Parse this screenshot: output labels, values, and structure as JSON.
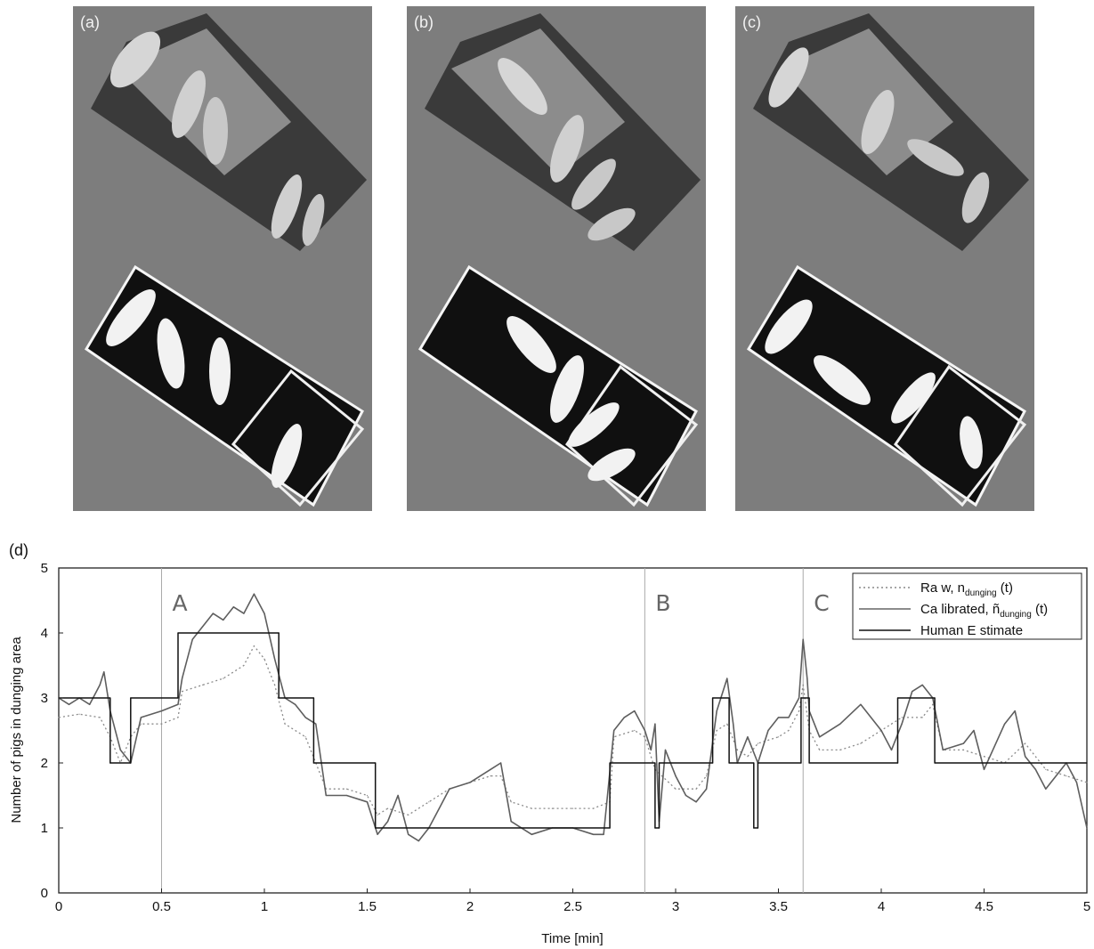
{
  "panels": [
    {
      "id": "a",
      "label": "(a)"
    },
    {
      "id": "b",
      "label": "(b)"
    },
    {
      "id": "c",
      "label": "(c)"
    }
  ],
  "chart_data": {
    "type": "line",
    "panel_label": "(d)",
    "xlabel": "Time [min]",
    "ylabel": "Number of pigs in dunging area",
    "xlim": [
      0,
      5
    ],
    "ylim": [
      0,
      5
    ],
    "xticks": [
      "0",
      "0.5",
      "1",
      "1.5",
      "2",
      "2.5",
      "3",
      "3.5",
      "4",
      "4.5",
      "5"
    ],
    "yticks": [
      "0",
      "1",
      "2",
      "3",
      "4",
      "5"
    ],
    "legend_position": "top-right",
    "markers": [
      {
        "label": "A",
        "x": 0.5
      },
      {
        "label": "B",
        "x": 2.85
      },
      {
        "label": "C",
        "x": 3.62
      }
    ],
    "series": [
      {
        "name": "Raw, n_dunging(t)",
        "legend_text": "Ra w, n",
        "legend_sub": "dunging",
        "legend_suffix": " (t)",
        "style": "dotted",
        "x": [
          0,
          0.1,
          0.2,
          0.25,
          0.3,
          0.35,
          0.4,
          0.5,
          0.58,
          0.6,
          0.7,
          0.8,
          0.9,
          0.95,
          1.0,
          1.05,
          1.1,
          1.2,
          1.25,
          1.3,
          1.4,
          1.5,
          1.55,
          1.6,
          1.7,
          1.8,
          1.9,
          2.0,
          2.1,
          2.15,
          2.2,
          2.3,
          2.4,
          2.5,
          2.6,
          2.68,
          2.7,
          2.8,
          2.85,
          2.9,
          3.0,
          3.1,
          3.15,
          3.2,
          3.25,
          3.3,
          3.35,
          3.4,
          3.5,
          3.55,
          3.6,
          3.62,
          3.65,
          3.7,
          3.8,
          3.9,
          4.0,
          4.05,
          4.1,
          4.2,
          4.25,
          4.3,
          4.4,
          4.5,
          4.6,
          4.7,
          4.8,
          4.9,
          5.0
        ],
        "y": [
          2.7,
          2.75,
          2.7,
          2.4,
          2.0,
          2.4,
          2.6,
          2.6,
          2.7,
          3.1,
          3.2,
          3.3,
          3.5,
          3.8,
          3.6,
          3.2,
          2.6,
          2.4,
          2.0,
          1.6,
          1.6,
          1.5,
          1.2,
          1.3,
          1.2,
          1.4,
          1.6,
          1.7,
          1.8,
          1.8,
          1.4,
          1.3,
          1.3,
          1.3,
          1.3,
          1.4,
          2.4,
          2.5,
          2.4,
          1.9,
          1.6,
          1.6,
          1.8,
          2.5,
          2.6,
          2.2,
          2.1,
          2.3,
          2.4,
          2.5,
          2.8,
          3.2,
          2.5,
          2.2,
          2.2,
          2.3,
          2.5,
          2.6,
          2.7,
          2.7,
          2.9,
          2.2,
          2.2,
          2.1,
          2.0,
          2.3,
          1.9,
          1.8,
          1.7
        ]
      },
      {
        "name": "Calibrated, ñ_dunging(t)",
        "legend_text": "Ca librated, ñ",
        "legend_sub": "dunging",
        "legend_suffix": " (t)",
        "style": "solid",
        "x": [
          0,
          0.05,
          0.1,
          0.15,
          0.2,
          0.22,
          0.25,
          0.3,
          0.35,
          0.4,
          0.5,
          0.58,
          0.6,
          0.65,
          0.7,
          0.75,
          0.8,
          0.85,
          0.9,
          0.95,
          1.0,
          1.05,
          1.1,
          1.15,
          1.2,
          1.25,
          1.3,
          1.4,
          1.5,
          1.55,
          1.6,
          1.65,
          1.7,
          1.75,
          1.8,
          1.85,
          1.9,
          2.0,
          2.1,
          2.15,
          2.2,
          2.3,
          2.4,
          2.5,
          2.6,
          2.65,
          2.7,
          2.75,
          2.8,
          2.85,
          2.88,
          2.9,
          2.92,
          2.95,
          3.0,
          3.05,
          3.1,
          3.15,
          3.2,
          3.25,
          3.28,
          3.3,
          3.35,
          3.4,
          3.45,
          3.5,
          3.55,
          3.6,
          3.62,
          3.64,
          3.65,
          3.7,
          3.8,
          3.9,
          4.0,
          4.05,
          4.1,
          4.15,
          4.2,
          4.25,
          4.3,
          4.4,
          4.45,
          4.5,
          4.6,
          4.65,
          4.7,
          4.75,
          4.8,
          4.9,
          4.95,
          5.0
        ],
        "y": [
          3.0,
          2.9,
          3.0,
          2.9,
          3.2,
          3.4,
          2.8,
          2.2,
          2.0,
          2.7,
          2.8,
          2.9,
          3.3,
          3.9,
          4.1,
          4.3,
          4.2,
          4.4,
          4.3,
          4.6,
          4.3,
          3.6,
          3.0,
          2.9,
          2.7,
          2.6,
          1.5,
          1.5,
          1.4,
          0.9,
          1.1,
          1.5,
          0.9,
          0.8,
          1.0,
          1.3,
          1.6,
          1.7,
          1.9,
          2.0,
          1.1,
          0.9,
          1.0,
          1.0,
          0.9,
          0.9,
          2.5,
          2.7,
          2.8,
          2.5,
          2.2,
          2.6,
          1.1,
          2.2,
          1.8,
          1.5,
          1.4,
          1.6,
          2.8,
          3.3,
          2.6,
          2.0,
          2.4,
          2.0,
          2.5,
          2.7,
          2.7,
          3.0,
          3.9,
          3.3,
          2.8,
          2.4,
          2.6,
          2.9,
          2.5,
          2.2,
          2.6,
          3.1,
          3.2,
          3.0,
          2.2,
          2.3,
          2.5,
          1.9,
          2.6,
          2.8,
          2.1,
          1.9,
          1.6,
          2.0,
          1.7,
          1.0
        ]
      },
      {
        "name": "Human Estimate",
        "legend_text": "Human E stimate",
        "legend_sub": "",
        "legend_suffix": "",
        "style": "step",
        "x": [
          0,
          0.25,
          0.25,
          0.35,
          0.35,
          0.58,
          0.58,
          1.07,
          1.07,
          1.24,
          1.24,
          1.54,
          1.54,
          2.68,
          2.68,
          2.9,
          2.9,
          2.92,
          2.92,
          3.18,
          3.18,
          3.26,
          3.26,
          3.38,
          3.38,
          3.4,
          3.4,
          3.61,
          3.61,
          3.65,
          3.65,
          4.08,
          4.08,
          4.26,
          4.26,
          5.0
        ],
        "y": [
          3,
          3,
          2,
          2,
          3,
          3,
          4,
          4,
          3,
          3,
          2,
          2,
          1,
          1,
          2,
          2,
          1,
          1,
          2,
          2,
          3,
          3,
          2,
          2,
          1,
          1,
          2,
          2,
          3,
          3,
          2,
          2,
          3,
          3,
          2,
          2
        ]
      }
    ]
  }
}
